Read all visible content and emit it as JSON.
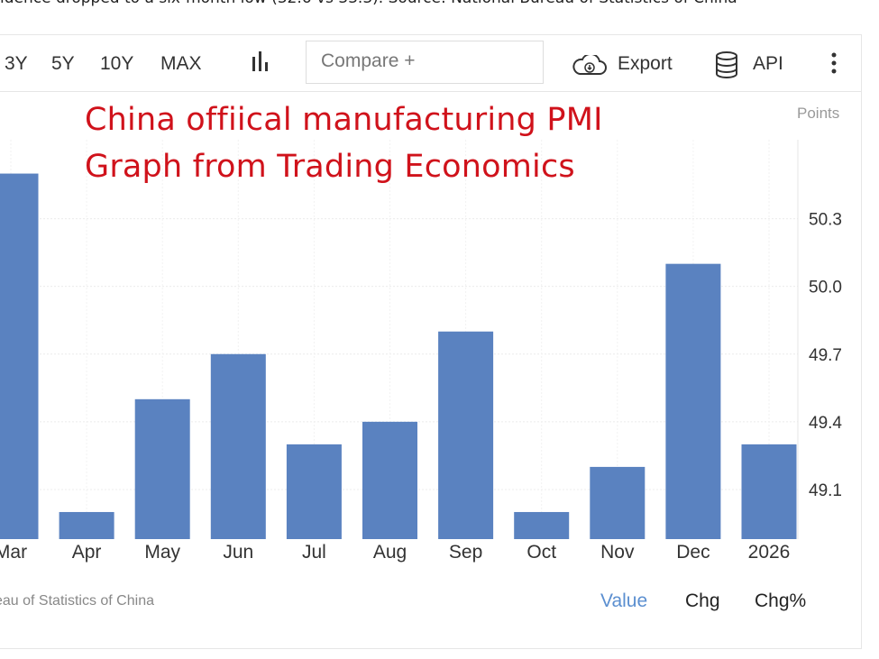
{
  "header_text": "idence dropped to a six-month low (32.6 vs 33.3). Source: National Bureau of Statistics of China",
  "toolbar": {
    "ranges": [
      "3Y",
      "5Y",
      "10Y",
      "MAX"
    ],
    "chart_type_icon": "bar-chart-icon",
    "compare_placeholder": "Compare +",
    "export_label": "Export",
    "export_icon": "cloud-download-icon",
    "api_label": "API",
    "api_icon": "database-icon",
    "more_icon": "vertical-ellipsis-icon"
  },
  "annotation": {
    "line1": "China offiical manufacturing PMI",
    "line2": "Graph from Trading Economics"
  },
  "footer": {
    "source": "eau of Statistics of China",
    "value_label": "Value",
    "chg_label": "Chg",
    "chgpct_label": "Chg%"
  },
  "colors": {
    "bar": "#5a82c0",
    "annotation": "#d0121b",
    "active_tab": "#5b8fd0"
  },
  "chart_data": {
    "type": "bar",
    "ylabel": "Points",
    "categories": [
      "Mar",
      "Apr",
      "May",
      "Jun",
      "Jul",
      "Aug",
      "Sep",
      "Oct",
      "Nov",
      "Dec",
      "2026"
    ],
    "values": [
      50.5,
      49.0,
      49.5,
      49.7,
      49.3,
      49.4,
      49.8,
      49.0,
      49.2,
      50.1,
      49.3
    ],
    "yticks": [
      "49.1",
      "49.4",
      "49.7",
      "50.0",
      "50.3"
    ],
    "ylim": [
      48.88,
      50.65
    ],
    "grid": true,
    "yaxis_position": "right"
  }
}
